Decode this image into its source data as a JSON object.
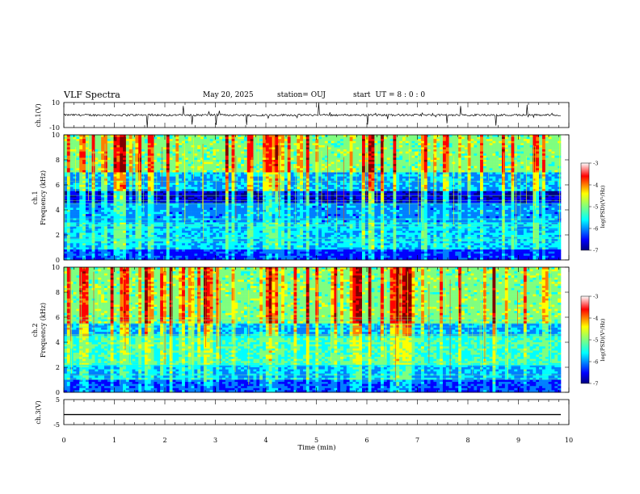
{
  "header": {
    "title": "VLF Spectra",
    "date": "May 20, 2025",
    "station": "station= OUJ",
    "start_label": "start",
    "start_ut": "UT =  8 : 0 : 0"
  },
  "chart_data": [
    {
      "type": "line",
      "panel": "ch1-waveform",
      "ylabel": "ch.1(V)",
      "ylim": [
        -10,
        10
      ],
      "yticks": [
        "10",
        "-10"
      ],
      "xlim": [
        0,
        10
      ],
      "baseline_value": 0
    },
    {
      "type": "heatmap",
      "panel": "ch1-spectrogram",
      "ylabel": "ch.1\nFrequency (kHz)",
      "ylabel_lines": [
        "ch.1",
        "Frequency (kHz)"
      ],
      "ylim": [
        0,
        10
      ],
      "yticks": [
        "0",
        "2",
        "4",
        "6",
        "8",
        "10"
      ],
      "xlim": [
        0,
        10
      ],
      "colorbar": {
        "label": "log(PSD)(V²/Hz)",
        "ticks": [
          "-3",
          "-4",
          "-5",
          "-6",
          "-7"
        ],
        "range": [
          -7,
          -3
        ]
      }
    },
    {
      "type": "heatmap",
      "panel": "ch2-spectrogram",
      "ylabel": "ch.2\nFrequency (kHz)",
      "ylabel_lines": [
        "ch.2",
        "Frequency (kHz)"
      ],
      "ylim": [
        0,
        10
      ],
      "yticks": [
        "0",
        "2",
        "4",
        "6",
        "8",
        "10"
      ],
      "xlim": [
        0,
        10
      ],
      "colorbar": {
        "label": "log(PSD)(V²/Hz)",
        "ticks": [
          "-3",
          "-4",
          "-5",
          "-6",
          "-7"
        ],
        "range": [
          -7,
          -3
        ]
      }
    },
    {
      "type": "line",
      "panel": "ch3-waveform",
      "ylabel": "ch.3(V)",
      "ylim": [
        -5,
        5
      ],
      "yticks": [
        "5",
        "-5"
      ],
      "xlim": [
        0,
        10
      ],
      "xlabel": "Time (min)",
      "xticks": [
        "0",
        "1",
        "2",
        "3",
        "4",
        "5",
        "6",
        "7",
        "8",
        "9",
        "10"
      ],
      "baseline_value": -1
    }
  ],
  "colors": {
    "jet": [
      "#00007f",
      "#0000ff",
      "#007fff",
      "#00ffff",
      "#7fff7f",
      "#ffff00",
      "#ff7f00",
      "#ff0000",
      "#7f0000"
    ]
  }
}
